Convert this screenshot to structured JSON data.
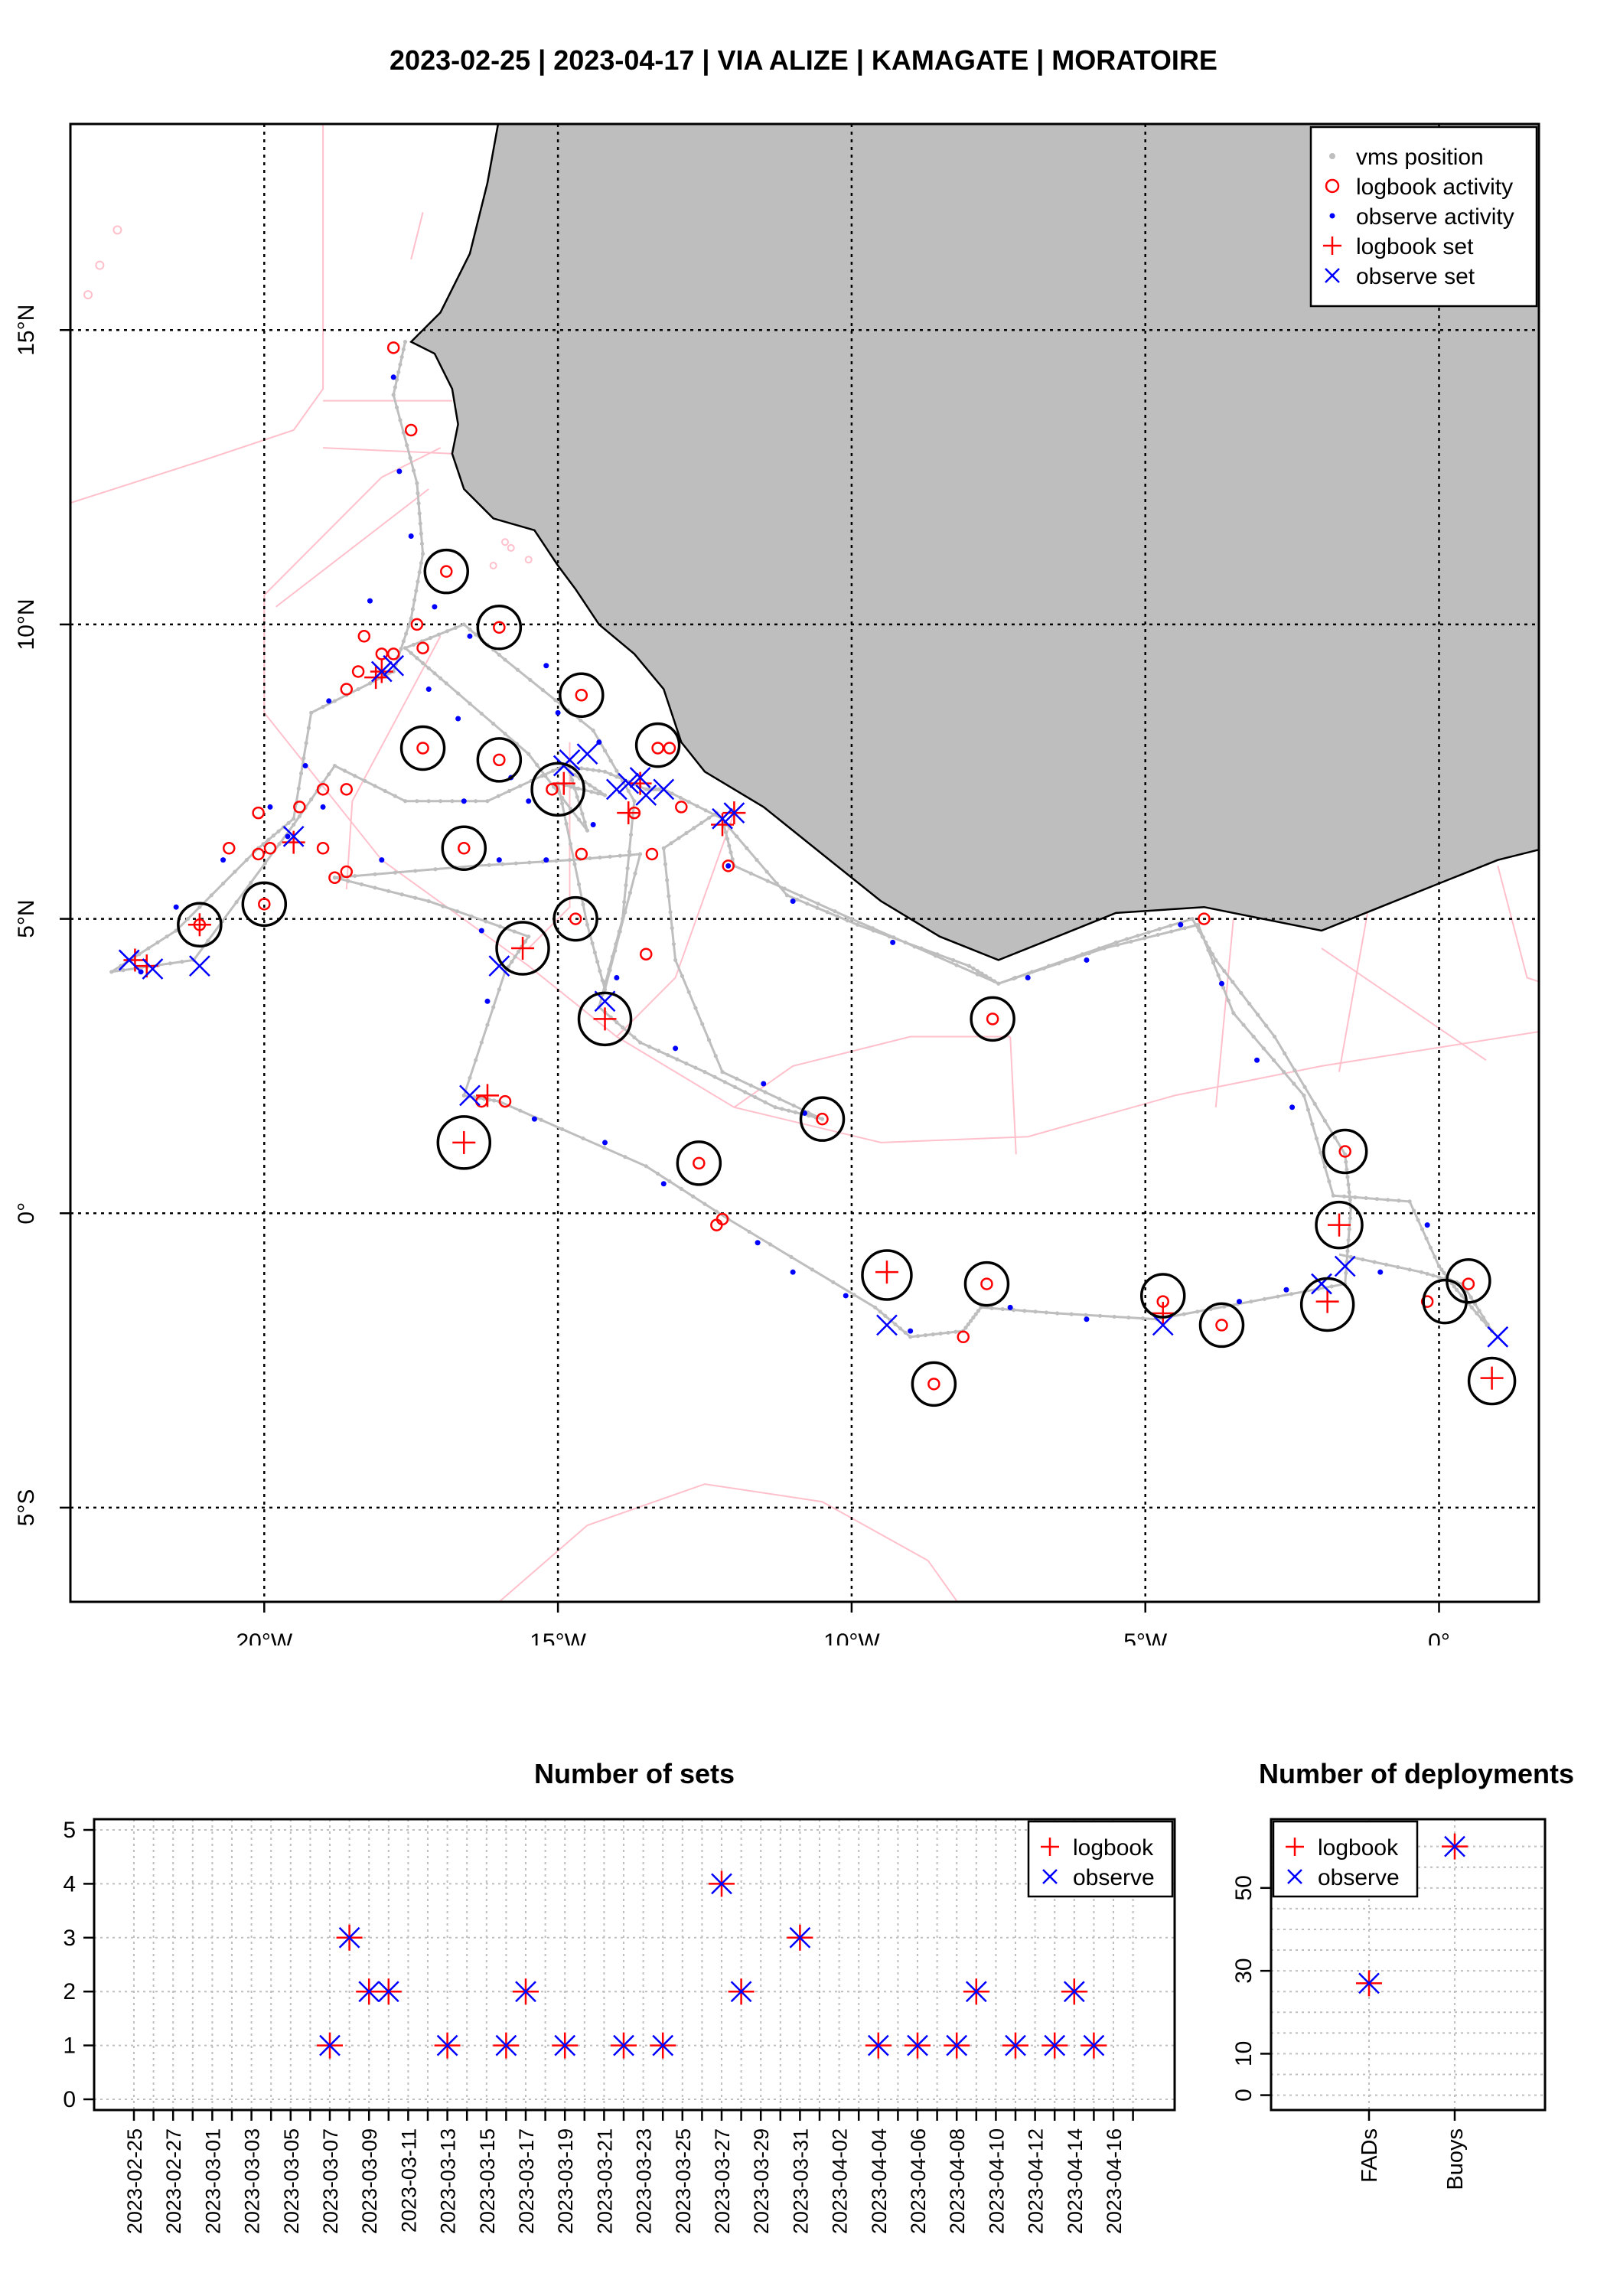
{
  "title": "2023-02-25 | 2023-04-17 | VIA ALIZE | KAMAGATE | MORATOIRE",
  "colors": {
    "logbook": "#ff0000",
    "observe": "#0000ff",
    "vms": "#bebebe",
    "land": "#bebebe",
    "eez": "#ffc0cb",
    "circle": "#000000"
  },
  "map": {
    "xlim": [
      -23.3,
      1.7
    ],
    "ylim": [
      -6.6,
      18.5
    ],
    "x_ticks": [
      -20,
      -15,
      -10,
      -5,
      0
    ],
    "x_tick_labels": [
      "20°W",
      "15°W",
      "10°W",
      "5°W",
      "0°"
    ],
    "y_ticks": [
      -5,
      0,
      5,
      10,
      15
    ],
    "y_tick_labels": [
      "5°S",
      "0°",
      "5°N",
      "10°N",
      "15°N"
    ],
    "legend": [
      "vms position",
      "logbook activity",
      "observe activity",
      "logbook set",
      "observe set"
    ],
    "vms_track": [
      [
        -17.6,
        14.8
      ],
      [
        -17.8,
        13.9
      ],
      [
        -17.4,
        12.4
      ],
      [
        -17.3,
        11.2
      ],
      [
        -17.5,
        10.1
      ],
      [
        -17.8,
        9.2
      ],
      [
        -19.2,
        8.5
      ],
      [
        -19.5,
        6.7
      ],
      [
        -20.1,
        6.2
      ],
      [
        -21.5,
        4.8
      ],
      [
        -22.6,
        4.1
      ],
      [
        -21.2,
        4.3
      ],
      [
        -19.5,
        6.6
      ],
      [
        -18.8,
        7.6
      ],
      [
        -17.6,
        7.0
      ],
      [
        -16.2,
        7.0
      ],
      [
        -14.9,
        7.6
      ],
      [
        -14.2,
        7.5
      ],
      [
        -13.5,
        7.2
      ],
      [
        -13.2,
        7.2
      ],
      [
        -12.2,
        6.7
      ],
      [
        -12.0,
        5.9
      ],
      [
        -10.0,
        5.0
      ],
      [
        -7.5,
        3.9
      ],
      [
        -5.5,
        4.6
      ],
      [
        -4.2,
        5.0
      ],
      [
        -3.8,
        4.3
      ],
      [
        -2.8,
        3.0
      ],
      [
        -1.6,
        1.0
      ],
      [
        -1.5,
        0.1
      ],
      [
        -1.6,
        -1.2
      ],
      [
        -3.2,
        -1.5
      ],
      [
        -4.8,
        -1.8
      ],
      [
        -6.5,
        -1.7
      ],
      [
        -7.8,
        -1.6
      ],
      [
        -8.1,
        -2.0
      ],
      [
        -9.0,
        -2.1
      ],
      [
        -9.6,
        -1.6
      ],
      [
        -12.1,
        -0.1
      ],
      [
        -13.5,
        0.8
      ],
      [
        -16.0,
        1.9
      ],
      [
        -16.6,
        2.0
      ],
      [
        -15.9,
        4.1
      ],
      [
        -15.5,
        4.7
      ],
      [
        -17.2,
        5.3
      ],
      [
        -18.8,
        5.7
      ],
      [
        -16.4,
        5.9
      ],
      [
        -14.8,
        6.0
      ],
      [
        -13.6,
        6.1
      ],
      [
        -14.2,
        3.8
      ],
      [
        -14.5,
        4.9
      ],
      [
        -15.0,
        7.3
      ],
      [
        -14.2,
        7.1
      ],
      [
        -14.8,
        7.5
      ],
      [
        -14.5,
        6.5
      ],
      [
        -15.5,
        7.8
      ],
      [
        -16.9,
        9.0
      ],
      [
        -17.6,
        9.6
      ],
      [
        -16.6,
        10.0
      ],
      [
        -15.9,
        9.4
      ],
      [
        -14.4,
        8.2
      ],
      [
        -13.7,
        7.0
      ],
      [
        -13.9,
        5.0
      ],
      [
        -14.3,
        3.5
      ],
      [
        -13.6,
        2.9
      ],
      [
        -12.5,
        2.4
      ],
      [
        -11.3,
        1.8
      ],
      [
        -10.5,
        1.6
      ],
      [
        -12.2,
        2.4
      ],
      [
        -13.0,
        4.3
      ],
      [
        -13.2,
        6.2
      ],
      [
        -12.3,
        6.8
      ],
      [
        -11.1,
        5.4
      ],
      [
        -9.9,
        4.9
      ],
      [
        -8.0,
        4.2
      ],
      [
        -7.5,
        3.9
      ],
      [
        -5.7,
        4.5
      ],
      [
        -4.1,
        4.9
      ],
      [
        -3.5,
        3.4
      ],
      [
        -2.3,
        2.0
      ],
      [
        -1.8,
        0.3
      ],
      [
        -0.5,
        0.2
      ],
      [
        0.0,
        -0.9
      ],
      [
        0.3,
        -1.3
      ],
      [
        0.9,
        -2.0
      ],
      [
        0.4,
        -1.2
      ],
      [
        -0.3,
        -1.0
      ],
      [
        -1.7,
        -0.7
      ]
    ],
    "logbook_activities": [
      [
        -17.8,
        14.7
      ],
      [
        -17.5,
        13.3
      ],
      [
        -16.9,
        10.9
      ],
      [
        -16.0,
        9.95
      ],
      [
        -17.4,
        10.0
      ],
      [
        -17.8,
        9.5
      ],
      [
        -18.4,
        9.2
      ],
      [
        -18.3,
        9.8
      ],
      [
        -18.6,
        8.9
      ],
      [
        -14.6,
        8.8
      ],
      [
        -17.3,
        7.9
      ],
      [
        -16.0,
        7.7
      ],
      [
        -13.3,
        7.9
      ],
      [
        -13.1,
        7.9
      ],
      [
        -18.6,
        7.2
      ],
      [
        -19.0,
        7.2
      ],
      [
        -19.4,
        6.9
      ],
      [
        -20.1,
        6.8
      ],
      [
        -20.6,
        6.2
      ],
      [
        -20.1,
        6.1
      ],
      [
        -19.9,
        6.2
      ],
      [
        -19.0,
        6.2
      ],
      [
        -16.6,
        6.2
      ],
      [
        -15.1,
        7.2
      ],
      [
        -14.6,
        6.1
      ],
      [
        -13.4,
        6.1
      ],
      [
        -12.1,
        5.9
      ],
      [
        -18.6,
        5.8
      ],
      [
        -18.8,
        5.7
      ],
      [
        -20.0,
        5.25
      ],
      [
        -14.7,
        5.0
      ],
      [
        -13.5,
        4.4
      ],
      [
        -21.1,
        4.9
      ],
      [
        -16.3,
        1.9
      ],
      [
        -15.9,
        1.9
      ],
      [
        -12.6,
        0.85
      ],
      [
        -10.5,
        1.6
      ],
      [
        -7.6,
        3.3
      ],
      [
        -12.2,
        -0.1
      ],
      [
        -12.3,
        -0.2
      ],
      [
        -7.7,
        -1.2
      ],
      [
        -8.1,
        -2.1
      ],
      [
        -8.6,
        -2.9
      ],
      [
        -4.7,
        -1.5
      ],
      [
        -3.7,
        -1.9
      ],
      [
        -1.6,
        1.05
      ],
      [
        -0.2,
        -1.5
      ],
      [
        0.5,
        -1.2
      ],
      [
        -4.0,
        5.0
      ],
      [
        -13.7,
        6.8
      ],
      [
        -12.9,
        6.9
      ],
      [
        -18.0,
        9.5
      ],
      [
        -17.3,
        9.6
      ]
    ],
    "logbook_sets": [
      [
        -22.2,
        4.3
      ],
      [
        -22.0,
        4.2
      ],
      [
        -21.1,
        4.9
      ],
      [
        -18.0,
        9.2
      ],
      [
        -18.1,
        9.1
      ],
      [
        -19.5,
        6.3
      ],
      [
        -15.6,
        4.5
      ],
      [
        -14.9,
        7.3
      ],
      [
        -14.2,
        3.3
      ],
      [
        -13.8,
        6.8
      ],
      [
        -13.6,
        7.3
      ],
      [
        -12.2,
        6.6
      ],
      [
        -12.0,
        6.8
      ],
      [
        -16.6,
        1.2
      ],
      [
        -16.2,
        2.0
      ],
      [
        -9.4,
        -1.0
      ],
      [
        -4.7,
        -1.7
      ],
      [
        -1.9,
        -1.5
      ],
      [
        -1.7,
        -0.2
      ],
      [
        0.9,
        -2.8
      ]
    ],
    "observe_activities": [
      [
        -17.8,
        14.2
      ],
      [
        -17.7,
        12.6
      ],
      [
        -17.5,
        11.5
      ],
      [
        -18.2,
        10.4
      ],
      [
        -17.1,
        10.3
      ],
      [
        -16.5,
        9.8
      ],
      [
        -15.2,
        9.3
      ],
      [
        -15.0,
        8.5
      ],
      [
        -14.3,
        8.0
      ],
      [
        -18.9,
        8.7
      ],
      [
        -19.3,
        7.6
      ],
      [
        -19.0,
        6.9
      ],
      [
        -20.7,
        6.0
      ],
      [
        -21.5,
        5.2
      ],
      [
        -18.0,
        6.0
      ],
      [
        -16.0,
        6.0
      ],
      [
        -15.2,
        6.0
      ],
      [
        -16.3,
        4.8
      ],
      [
        -16.2,
        3.6
      ],
      [
        -15.4,
        1.6
      ],
      [
        -14.2,
        1.2
      ],
      [
        -13.2,
        0.5
      ],
      [
        -11.6,
        -0.5
      ],
      [
        -11.0,
        -1.0
      ],
      [
        -10.1,
        -1.4
      ],
      [
        -9.0,
        -2.0
      ],
      [
        -7.3,
        -1.6
      ],
      [
        -6.0,
        -1.8
      ],
      [
        -3.4,
        -1.5
      ],
      [
        -2.6,
        -1.3
      ],
      [
        -1.0,
        -1.0
      ],
      [
        -0.2,
        -0.2
      ],
      [
        -12.1,
        5.9
      ],
      [
        -11.0,
        5.3
      ],
      [
        -9.3,
        4.6
      ],
      [
        -7.0,
        4.0
      ],
      [
        -6.0,
        4.3
      ],
      [
        -4.4,
        4.9
      ],
      [
        -3.7,
        3.9
      ],
      [
        -3.1,
        2.6
      ],
      [
        -2.5,
        1.8
      ],
      [
        -14.0,
        4.0
      ],
      [
        -13.0,
        2.8
      ],
      [
        -11.5,
        2.2
      ],
      [
        -10.8,
        1.7
      ],
      [
        -14.4,
        6.6
      ],
      [
        -15.5,
        7.0
      ],
      [
        -16.7,
        8.4
      ],
      [
        -17.2,
        8.9
      ],
      [
        -15.8,
        7.4
      ],
      [
        -16.6,
        7.0
      ],
      [
        -19.6,
        6.4
      ],
      [
        -19.9,
        6.9
      ],
      [
        -22.1,
        4.1
      ]
    ],
    "observe_sets": [
      [
        -22.3,
        4.3
      ],
      [
        -21.9,
        4.15
      ],
      [
        -21.1,
        4.2
      ],
      [
        -19.5,
        6.4
      ],
      [
        -17.8,
        9.3
      ],
      [
        -18.0,
        9.2
      ],
      [
        -16.0,
        4.2
      ],
      [
        -16.5,
        2.0
      ],
      [
        -14.9,
        7.6
      ],
      [
        -14.8,
        7.7
      ],
      [
        -14.5,
        7.8
      ],
      [
        -13.8,
        7.3
      ],
      [
        -13.5,
        7.1
      ],
      [
        -13.2,
        7.2
      ],
      [
        -12.2,
        6.7
      ],
      [
        -12.0,
        6.8
      ],
      [
        -14.2,
        3.6
      ],
      [
        -9.4,
        -1.9
      ],
      [
        -4.7,
        -1.9
      ],
      [
        -2.0,
        -1.2
      ],
      [
        -1.6,
        -0.9
      ],
      [
        1.0,
        -2.1
      ],
      [
        -14.0,
        7.2
      ],
      [
        -13.6,
        7.4
      ]
    ],
    "circles": [
      [
        -16.9,
        10.9,
        28
      ],
      [
        -16.0,
        9.95,
        28
      ],
      [
        -14.6,
        8.8,
        28
      ],
      [
        -13.3,
        7.95,
        28
      ],
      [
        -17.3,
        7.9,
        28
      ],
      [
        -16.0,
        7.7,
        28
      ],
      [
        -15.0,
        7.2,
        34
      ],
      [
        -16.6,
        6.2,
        28
      ],
      [
        -20.0,
        5.25,
        28
      ],
      [
        -21.1,
        4.9,
        28
      ],
      [
        -15.6,
        4.5,
        34
      ],
      [
        -14.7,
        5.0,
        28
      ],
      [
        -14.2,
        3.3,
        34
      ],
      [
        -16.6,
        1.2,
        34
      ],
      [
        -12.6,
        0.85,
        28
      ],
      [
        -10.5,
        1.6,
        28
      ],
      [
        -7.6,
        3.3,
        28
      ],
      [
        -9.4,
        -1.05,
        32
      ],
      [
        -7.7,
        -1.2,
        28
      ],
      [
        -8.6,
        -2.9,
        28
      ],
      [
        -4.7,
        -1.4,
        28
      ],
      [
        -3.7,
        -1.9,
        28
      ],
      [
        -1.6,
        1.05,
        28
      ],
      [
        -1.7,
        -0.2,
        30
      ],
      [
        -1.9,
        -1.55,
        34
      ],
      [
        0.5,
        -1.15,
        28
      ],
      [
        0.1,
        -1.5,
        28
      ],
      [
        0.9,
        -2.85,
        30
      ]
    ]
  },
  "chart_data": [
    {
      "type": "scatter",
      "title": "Number of sets",
      "x": [
        "2023-02-25",
        "2023-02-26",
        "2023-02-27",
        "2023-02-28",
        "2023-03-01",
        "2023-03-02",
        "2023-03-03",
        "2023-03-04",
        "2023-03-05",
        "2023-03-06",
        "2023-03-07",
        "2023-03-08",
        "2023-03-09",
        "2023-03-10",
        "2023-03-11",
        "2023-03-12",
        "2023-03-13",
        "2023-03-14",
        "2023-03-15",
        "2023-03-16",
        "2023-03-17",
        "2023-03-18",
        "2023-03-19",
        "2023-03-20",
        "2023-03-21",
        "2023-03-22",
        "2023-03-23",
        "2023-03-24",
        "2023-03-25",
        "2023-03-26",
        "2023-03-27",
        "2023-03-28",
        "2023-03-29",
        "2023-03-30",
        "2023-03-31",
        "2023-04-01",
        "2023-04-02",
        "2023-04-03",
        "2023-04-04",
        "2023-04-05",
        "2023-04-06",
        "2023-04-07",
        "2023-04-08",
        "2023-04-09",
        "2023-04-10",
        "2023-04-11",
        "2023-04-12",
        "2023-04-13",
        "2023-04-14",
        "2023-04-15",
        "2023-04-16",
        "2023-04-17"
      ],
      "tick_labels": [
        "2023-02-25",
        "2023-02-27",
        "2023-03-01",
        "2023-03-03",
        "2023-03-05",
        "2023-03-07",
        "2023-03-09",
        "2023-03-11",
        "2023-03-13",
        "2023-03-15",
        "2023-03-17",
        "2023-03-19",
        "2023-03-21",
        "2023-03-23",
        "2023-03-25",
        "2023-03-27",
        "2023-03-29",
        "2023-03-31",
        "2023-04-02",
        "2023-04-04",
        "2023-04-06",
        "2023-04-08",
        "2023-04-10",
        "2023-04-12",
        "2023-04-14",
        "2023-04-16"
      ],
      "series": [
        {
          "name": "logbook",
          "points": [
            [
              "2023-03-07",
              1
            ],
            [
              "2023-03-08",
              3
            ],
            [
              "2023-03-09",
              2
            ],
            [
              "2023-03-10",
              2
            ],
            [
              "2023-03-13",
              1
            ],
            [
              "2023-03-16",
              1
            ],
            [
              "2023-03-17",
              2
            ],
            [
              "2023-03-19",
              1
            ],
            [
              "2023-03-22",
              1
            ],
            [
              "2023-03-24",
              1
            ],
            [
              "2023-03-27",
              4
            ],
            [
              "2023-03-28",
              2
            ],
            [
              "2023-03-31",
              3
            ],
            [
              "2023-04-04",
              1
            ],
            [
              "2023-04-06",
              1
            ],
            [
              "2023-04-08",
              1
            ],
            [
              "2023-04-09",
              2
            ],
            [
              "2023-04-11",
              1
            ],
            [
              "2023-04-13",
              1
            ],
            [
              "2023-04-14",
              2
            ],
            [
              "2023-04-15",
              1
            ]
          ]
        },
        {
          "name": "observe",
          "points": [
            [
              "2023-03-07",
              1
            ],
            [
              "2023-03-08",
              3
            ],
            [
              "2023-03-09",
              2
            ],
            [
              "2023-03-10",
              2
            ],
            [
              "2023-03-13",
              1
            ],
            [
              "2023-03-16",
              1
            ],
            [
              "2023-03-17",
              2
            ],
            [
              "2023-03-19",
              1
            ],
            [
              "2023-03-22",
              1
            ],
            [
              "2023-03-24",
              1
            ],
            [
              "2023-03-27",
              4
            ],
            [
              "2023-03-28",
              2
            ],
            [
              "2023-03-31",
              3
            ],
            [
              "2023-04-04",
              1
            ],
            [
              "2023-04-06",
              1
            ],
            [
              "2023-04-08",
              1
            ],
            [
              "2023-04-09",
              2
            ],
            [
              "2023-04-11",
              1
            ],
            [
              "2023-04-13",
              1
            ],
            [
              "2023-04-14",
              2
            ],
            [
              "2023-04-15",
              1
            ]
          ]
        }
      ],
      "ylim": [
        0,
        5
      ],
      "y_ticks": [
        "0",
        "1",
        "2",
        "3",
        "4",
        "5"
      ],
      "legend": [
        "logbook",
        "observe"
      ],
      "legend_position": "top-right",
      "grid": true
    },
    {
      "type": "scatter",
      "title": "Number of deployments",
      "categories": [
        "FADs",
        "Buoys"
      ],
      "series": [
        {
          "name": "logbook",
          "values": [
            27,
            60
          ]
        },
        {
          "name": "observe",
          "values": [
            27,
            60
          ]
        }
      ],
      "ylim": [
        -1,
        64
      ],
      "y_ticks": [
        "0",
        "10",
        "30",
        "50"
      ],
      "legend": [
        "logbook",
        "observe"
      ],
      "legend_position": "top-left",
      "grid": true
    }
  ]
}
